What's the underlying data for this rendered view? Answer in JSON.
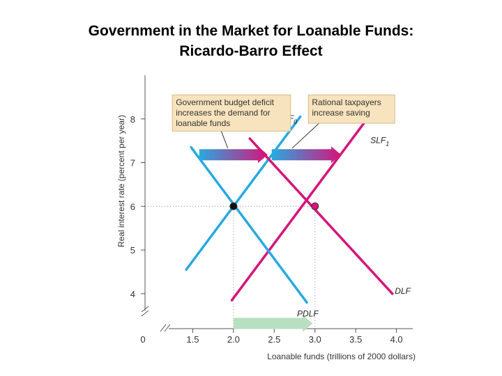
{
  "slide": {
    "title_line1": "Government in the Market for Loanable Funds:",
    "title_line2": "Ricardo-Barro Effect"
  },
  "colors": {
    "blue": "#29a9e0",
    "magenta": "#d6147a",
    "note_bg": "#f7e3bd",
    "note_border": "#d9b98a",
    "green_arrow": "#b8dfc0",
    "axis": "#555555",
    "highlight_tick": "#d6147a"
  },
  "chart_data": {
    "type": "line",
    "xlabel": "Loanable funds (trillions of 2000 dollars)",
    "ylabel": "Real interest rate (percent per year)",
    "xlim": [
      1.0,
      4.2
    ],
    "ylim": [
      3.2,
      9.0
    ],
    "x_ticks": [
      {
        "value": 1.5,
        "label": "1.5"
      },
      {
        "value": 2.0,
        "label": "2.0"
      },
      {
        "value": 2.5,
        "label": "2.5"
      },
      {
        "value": 3.0,
        "label": "3.0"
      },
      {
        "value": 3.5,
        "label": "3.5"
      },
      {
        "value": 4.0,
        "label": "4.0"
      }
    ],
    "y_ticks": [
      {
        "value": 4,
        "label": "4"
      },
      {
        "value": 5,
        "label": "5"
      },
      {
        "value": 6,
        "label": "6"
      },
      {
        "value": 7,
        "label": "7"
      },
      {
        "value": 8,
        "label": "8"
      }
    ],
    "origin_label": "0",
    "series": [
      {
        "name": "SLF",
        "sub": "0",
        "color": "blue",
        "points": [
          [
            1.42,
            4.55
          ],
          [
            2.82,
            8.05
          ]
        ],
        "label_at": [
          2.55,
          7.95
        ]
      },
      {
        "name": "SLF",
        "sub": "1",
        "color": "magenta",
        "points": [
          [
            1.98,
            3.85
          ],
          [
            3.6,
            7.9
          ]
        ],
        "label_at": [
          3.68,
          7.45
        ]
      },
      {
        "name": "PDLF",
        "sub": "",
        "color": "blue",
        "points": [
          [
            1.48,
            7.35
          ],
          [
            2.9,
            3.8
          ]
        ],
        "label_at": [
          2.78,
          3.48
        ]
      },
      {
        "name": "DLF",
        "sub": "",
        "color": "magenta",
        "points": [
          [
            2.2,
            7.55
          ],
          [
            3.95,
            4.0
          ]
        ],
        "label_at": [
          3.98,
          4.0
        ]
      }
    ],
    "equilibria": [
      {
        "x": 2.0,
        "y": 6,
        "color": "#111111"
      },
      {
        "x": 3.0,
        "y": 6,
        "color": "magenta"
      }
    ],
    "highlighted_y": 6,
    "highlighted_x": 3.0,
    "shift_arrows": [
      {
        "from": [
          1.58,
          7.18
        ],
        "to": [
          2.42,
          7.18
        ],
        "style": "blue-to-magenta"
      },
      {
        "from": [
          2.47,
          7.18
        ],
        "to": [
          3.32,
          7.18
        ],
        "style": "blue-to-magenta"
      },
      {
        "from": [
          2.0,
          3.32
        ],
        "to": [
          2.97,
          3.32
        ],
        "style": "green"
      }
    ],
    "annotations": [
      {
        "lines": [
          "Government budget deficit",
          "increases the demand for",
          "loanable funds"
        ],
        "box": [
          1.25,
          8.55,
          2.7,
          7.72
        ],
        "pointer_from": [
          1.85,
          7.72
        ],
        "pointer_to": [
          1.93,
          7.33
        ]
      },
      {
        "lines": [
          "Rational taxpayers",
          "increase saving"
        ],
        "box": [
          2.92,
          8.55,
          3.98,
          7.9
        ],
        "pointer_from": [
          3.05,
          7.9
        ],
        "pointer_to": [
          2.72,
          7.33
        ]
      }
    ]
  }
}
